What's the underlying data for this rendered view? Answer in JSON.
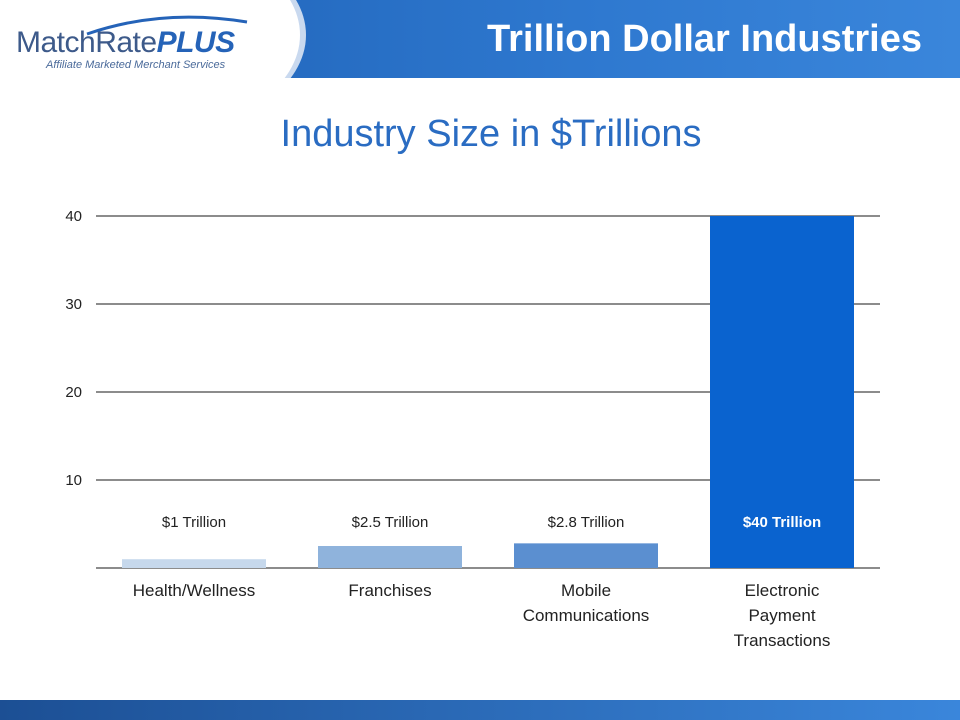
{
  "slide": {
    "title": "Trillion Dollar Industries"
  },
  "logo": {
    "name_part1": "MatchRate",
    "name_part2": "PLUS",
    "tagline": "Affiliate Marketed Merchant Services"
  },
  "colors": {
    "header": "#2e78cf",
    "title": "#2a6cc2",
    "gridline": "#1a1a1a"
  },
  "chart_data": {
    "type": "bar",
    "title": "Industry Size in $Trillions",
    "categories": [
      [
        "Health/Wellness"
      ],
      [
        "Franchises"
      ],
      [
        "Mobile",
        "Communications"
      ],
      [
        "Electronic",
        "Payment",
        "Transactions"
      ]
    ],
    "values": [
      1,
      2.5,
      2.8,
      40
    ],
    "data_labels": [
      "$1 Trillion",
      "$2.5 Trillion",
      "$2.8 Trillion",
      "$40 Trillion"
    ],
    "bar_colors": [
      "#c6d8ec",
      "#8fb3dc",
      "#5b8fd0",
      "#0a63cf"
    ],
    "ylim": [
      0,
      40
    ],
    "yticks": [
      10,
      20,
      30,
      40
    ],
    "grid": true
  }
}
